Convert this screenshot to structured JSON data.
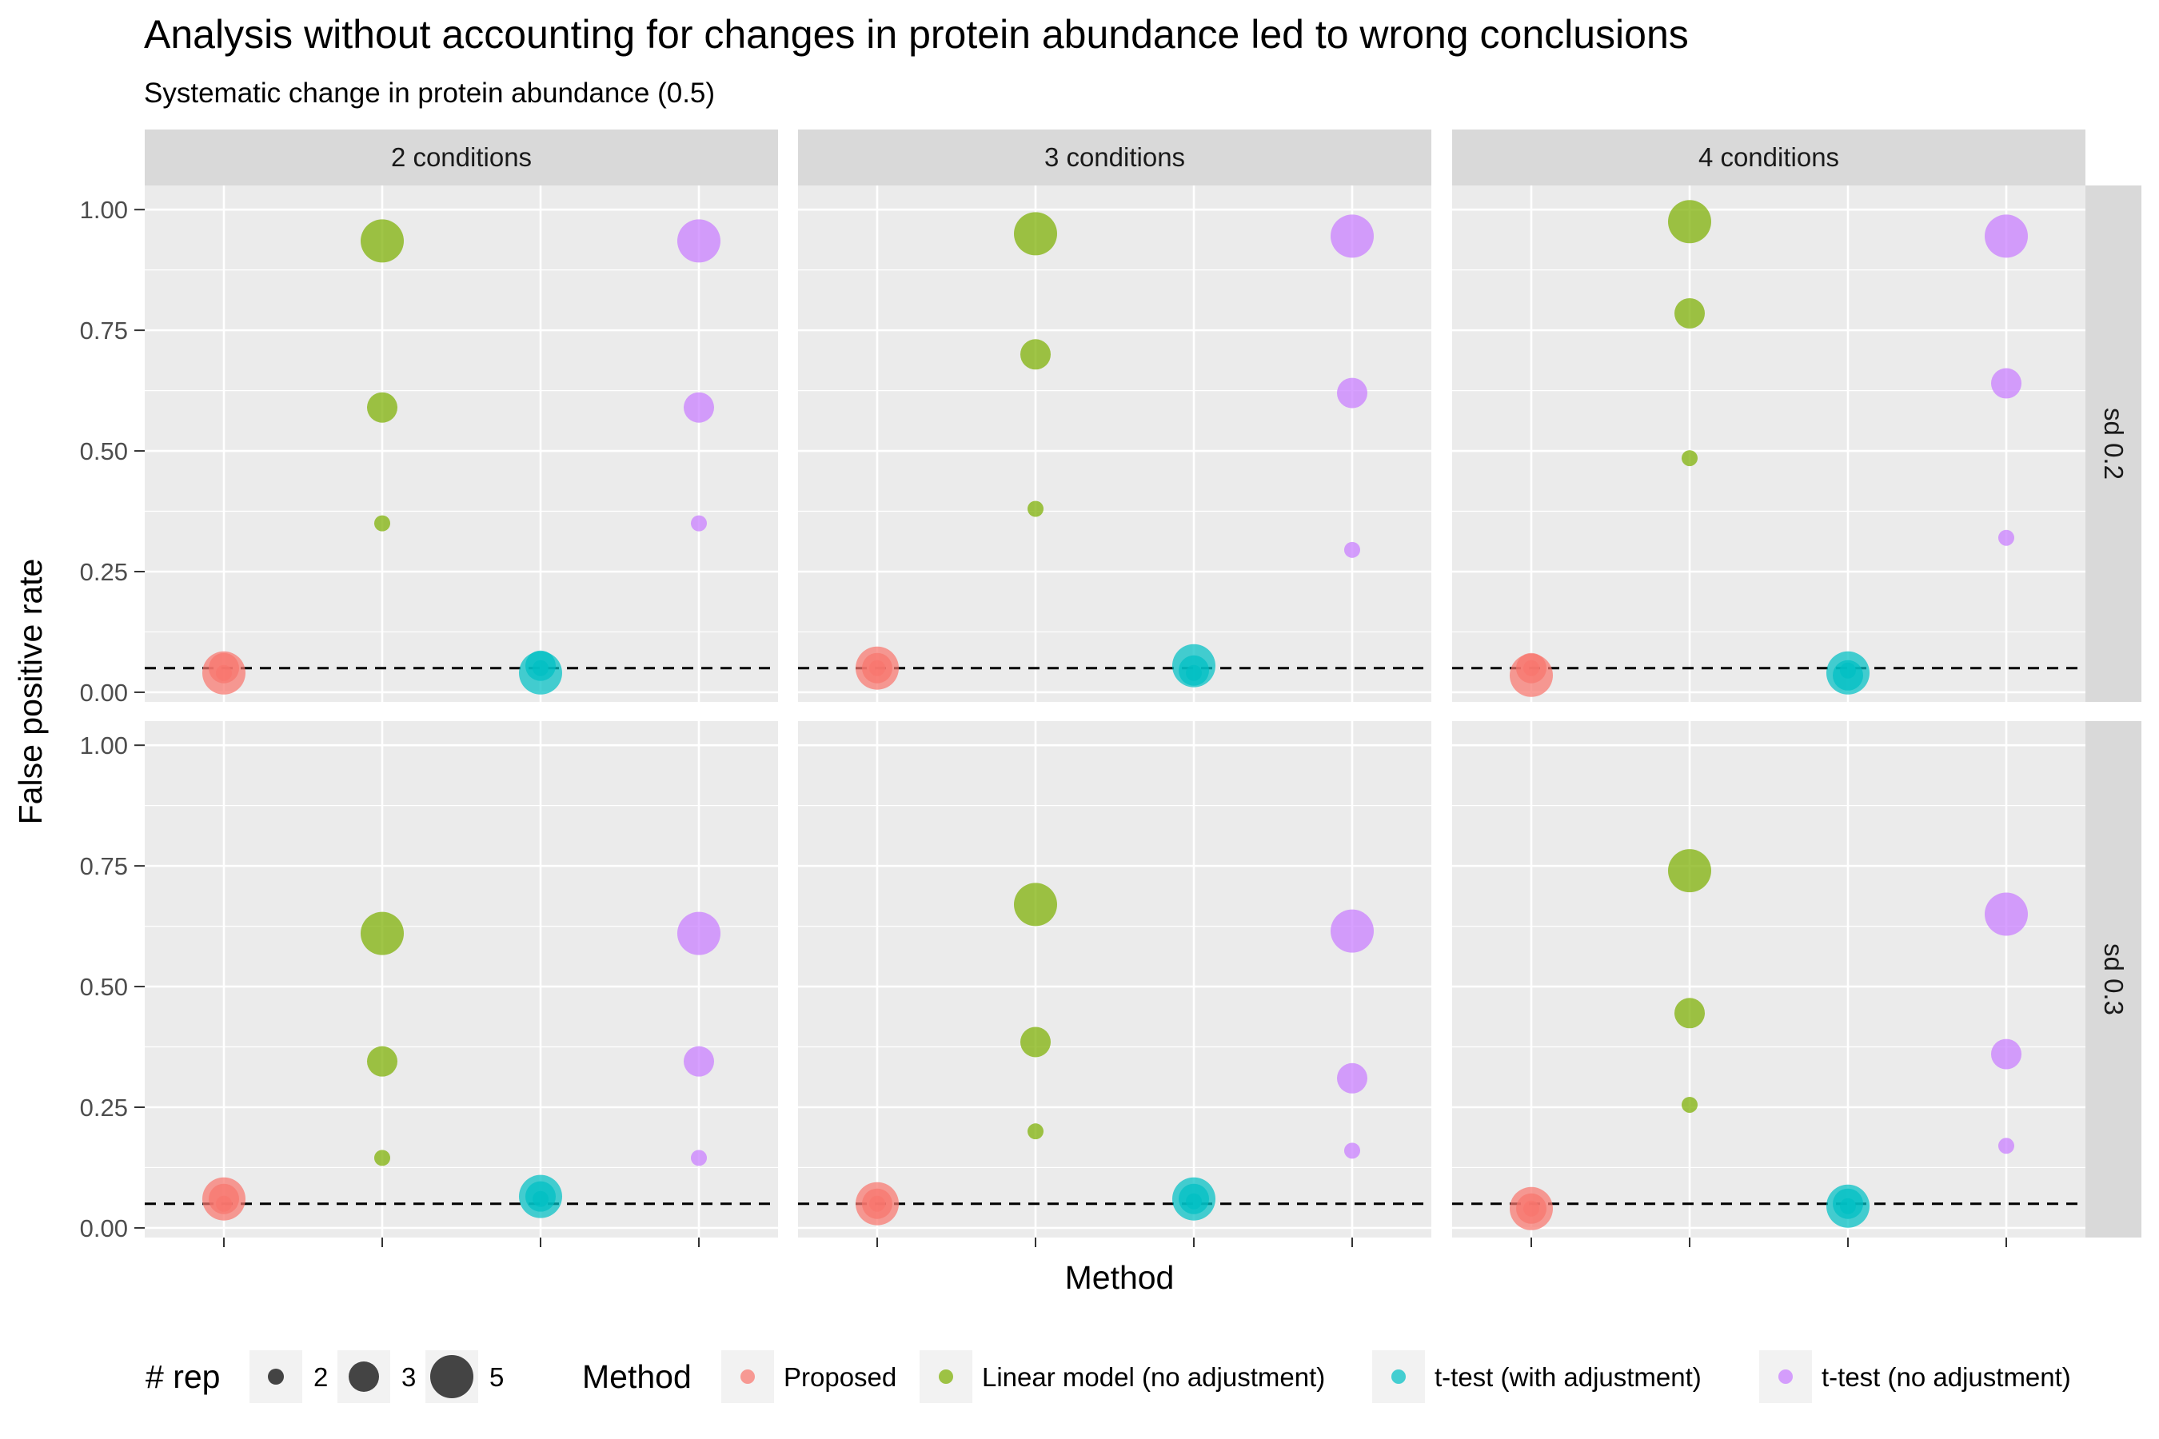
{
  "chart_data": {
    "type": "scatter",
    "title": "Analysis without accounting for changes in protein abundance led to wrong conclusions",
    "subtitle": "Systematic change in protein abundance (0.5)",
    "xlabel": "Method",
    "ylabel": "False positive rate",
    "ylim": [
      -0.02,
      1.05
    ],
    "yticks": [
      0,
      0.25,
      0.5,
      0.75,
      1
    ],
    "ytick_labels": [
      "0.00",
      "0.25",
      "0.50",
      "0.75",
      "1.00"
    ],
    "reference_line": {
      "y": 0.05,
      "style": "dashed",
      "color": "#000000"
    },
    "facet_columns": [
      "2 conditions",
      "3 conditions",
      "4 conditions"
    ],
    "facet_rows": [
      "sd 0.2",
      "sd 0.3"
    ],
    "methods": [
      {
        "name": "Proposed",
        "color": "#F8766D"
      },
      {
        "name": "Linear model (no adjustment)",
        "color": "#7CAE00"
      },
      {
        "name": "t-test (with adjustment)",
        "color": "#00BFC4"
      },
      {
        "name": "t-test (no adjustment)",
        "color": "#C77CFF"
      }
    ],
    "size_legend": {
      "title": "# rep",
      "values": [
        2,
        3,
        5
      ]
    },
    "color_legend": {
      "title": "Method"
    },
    "panels": [
      {
        "row": "sd 0.2",
        "col": "2 conditions",
        "values": [
          [
            0.04,
            0.05,
            0.04
          ],
          [
            0.35,
            0.59,
            0.935
          ],
          [
            0.05,
            0.055,
            0.04
          ],
          [
            0.35,
            0.59,
            0.935
          ]
        ]
      },
      {
        "row": "sd 0.2",
        "col": "3 conditions",
        "values": [
          [
            0.05,
            0.05,
            0.05
          ],
          [
            0.38,
            0.7,
            0.95
          ],
          [
            0.04,
            0.045,
            0.055
          ],
          [
            0.295,
            0.62,
            0.945
          ]
        ]
      },
      {
        "row": "sd 0.2",
        "col": "4 conditions",
        "values": [
          [
            0.05,
            0.05,
            0.035
          ],
          [
            0.485,
            0.785,
            0.975
          ],
          [
            0.045,
            0.035,
            0.04
          ],
          [
            0.32,
            0.64,
            0.945
          ]
        ]
      },
      {
        "row": "sd 0.3",
        "col": "2 conditions",
        "values": [
          [
            0.05,
            0.06,
            0.06
          ],
          [
            0.145,
            0.345,
            0.61
          ],
          [
            0.06,
            0.065,
            0.065
          ],
          [
            0.145,
            0.345,
            0.61
          ]
        ]
      },
      {
        "row": "sd 0.3",
        "col": "3 conditions",
        "values": [
          [
            0.05,
            0.05,
            0.05
          ],
          [
            0.2,
            0.385,
            0.67
          ],
          [
            0.055,
            0.06,
            0.06
          ],
          [
            0.16,
            0.31,
            0.615
          ]
        ]
      },
      {
        "row": "sd 0.3",
        "col": "4 conditions",
        "values": [
          [
            0.04,
            0.04,
            0.04
          ],
          [
            0.255,
            0.445,
            0.74
          ],
          [
            0.045,
            0.05,
            0.045
          ],
          [
            0.17,
            0.36,
            0.65
          ]
        ]
      }
    ]
  }
}
